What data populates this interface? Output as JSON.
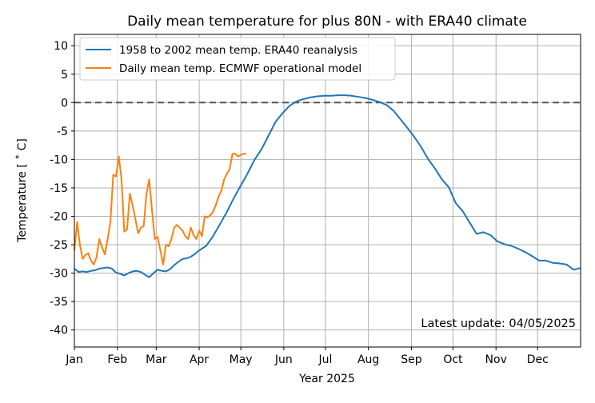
{
  "chart_data": {
    "type": "line",
    "title": "Daily mean temperature for plus 80N - with ERA40 climate",
    "xlabel": "Year 2025",
    "ylabel": "Temperature [$^\\circ$C]",
    "ylabel_display": "Temperature [ ˚ C]",
    "xlim": [
      0,
      365
    ],
    "ylim": [
      -43,
      12
    ],
    "x_ticks": [
      {
        "label": "Jan",
        "day": 0
      },
      {
        "label": "Feb",
        "day": 31
      },
      {
        "label": "Mar",
        "day": 59
      },
      {
        "label": "Apr",
        "day": 90
      },
      {
        "label": "May",
        "day": 120
      },
      {
        "label": "Jun",
        "day": 151
      },
      {
        "label": "Jul",
        "day": 181
      },
      {
        "label": "Aug",
        "day": 212
      },
      {
        "label": "Sep",
        "day": 243
      },
      {
        "label": "Oct",
        "day": 273
      },
      {
        "label": "Nov",
        "day": 304
      },
      {
        "label": "Dec",
        "day": 334
      }
    ],
    "y_ticks": [
      10,
      5,
      0,
      -5,
      -10,
      -15,
      -20,
      -25,
      -30,
      -35,
      -40
    ],
    "grid": true,
    "zero_line": {
      "y": 0,
      "style": "dashed",
      "color": "#555555"
    },
    "legend": {
      "placement": "top-left"
    },
    "annotation": "Latest update: 04/05/2025",
    "series": [
      {
        "name": "1958 to 2002 mean temp. ERA40 reanalysis",
        "color": "#1f77b4",
        "x": [
          0,
          3,
          6,
          9,
          12,
          15,
          18,
          21,
          24,
          27,
          30,
          33,
          36,
          39,
          42,
          45,
          48,
          51,
          54,
          57,
          60,
          63,
          66,
          69,
          72,
          75,
          78,
          81,
          84,
          87,
          90,
          95,
          100,
          105,
          110,
          115,
          120,
          125,
          130,
          135,
          140,
          145,
          150,
          155,
          160,
          165,
          170,
          175,
          180,
          185,
          190,
          195,
          200,
          205,
          210,
          215,
          220,
          225,
          230,
          235,
          240,
          245,
          250,
          255,
          260,
          265,
          270,
          275,
          280,
          285,
          290,
          295,
          300,
          305,
          310,
          315,
          320,
          325,
          330,
          335,
          340,
          345,
          350,
          355,
          360,
          365
        ],
        "y": [
          -29.2,
          -29.8,
          -29.7,
          -29.8,
          -29.6,
          -29.5,
          -29.2,
          -29.1,
          -29.0,
          -29.2,
          -29.9,
          -30.1,
          -30.4,
          -30.0,
          -29.7,
          -29.6,
          -29.8,
          -30.3,
          -30.7,
          -30.0,
          -29.4,
          -29.6,
          -29.7,
          -29.3,
          -28.6,
          -28.0,
          -27.5,
          -27.4,
          -27.1,
          -26.6,
          -26.0,
          -25.2,
          -23.5,
          -21.4,
          -19.2,
          -16.8,
          -14.6,
          -12.4,
          -10.0,
          -8.2,
          -5.8,
          -3.4,
          -1.9,
          -0.6,
          0.2,
          0.6,
          0.9,
          1.1,
          1.2,
          1.2,
          1.3,
          1.3,
          1.2,
          1.0,
          0.8,
          0.5,
          0.1,
          -0.4,
          -1.4,
          -2.9,
          -4.4,
          -6.0,
          -7.8,
          -9.9,
          -11.6,
          -13.5,
          -14.9,
          -17.7,
          -19.1,
          -21.1,
          -23.1,
          -22.8,
          -23.3,
          -24.4,
          -24.9,
          -25.2,
          -25.7,
          -26.3,
          -27.0,
          -27.8,
          -27.8,
          -28.2,
          -28.3,
          -28.5,
          -29.4,
          -29.1
        ]
      },
      {
        "name": "Daily mean temp. ECMWF operational model",
        "color": "#ff7f0e",
        "x": [
          0,
          2,
          4,
          6,
          8,
          10,
          12,
          14,
          16,
          18,
          20,
          22,
          24,
          26,
          28,
          30,
          32,
          34,
          36,
          38,
          40,
          42,
          44,
          46,
          48,
          50,
          52,
          54,
          56,
          58,
          60,
          62,
          64,
          66,
          68,
          70,
          72,
          74,
          76,
          78,
          80,
          82,
          84,
          86,
          88,
          90,
          92,
          94,
          96,
          98,
          100,
          102,
          104,
          106,
          108,
          110,
          112,
          114,
          116,
          118,
          120,
          122,
          124
        ],
        "y": [
          -26.0,
          -21.0,
          -25.0,
          -27.5,
          -26.8,
          -26.5,
          -27.8,
          -28.5,
          -27.2,
          -24.0,
          -25.5,
          -26.7,
          -24.0,
          -21.0,
          -12.7,
          -13.0,
          -9.5,
          -13.5,
          -22.7,
          -22.3,
          -16.0,
          -18.0,
          -20.5,
          -23.0,
          -22.0,
          -21.7,
          -16.0,
          -13.5,
          -19.0,
          -24.0,
          -23.6,
          -26.0,
          -28.5,
          -25.0,
          -25.3,
          -24.0,
          -22.0,
          -21.5,
          -22.0,
          -22.5,
          -23.5,
          -24.0,
          -22.0,
          -23.3,
          -24.0,
          -22.5,
          -23.5,
          -20.0,
          -20.2,
          -19.8,
          -19.2,
          -18.0,
          -16.5,
          -15.5,
          -13.5,
          -12.5,
          -11.7,
          -9.0,
          -9.0,
          -9.5,
          -9.2,
          -9.0,
          -9.0
        ]
      }
    ]
  }
}
